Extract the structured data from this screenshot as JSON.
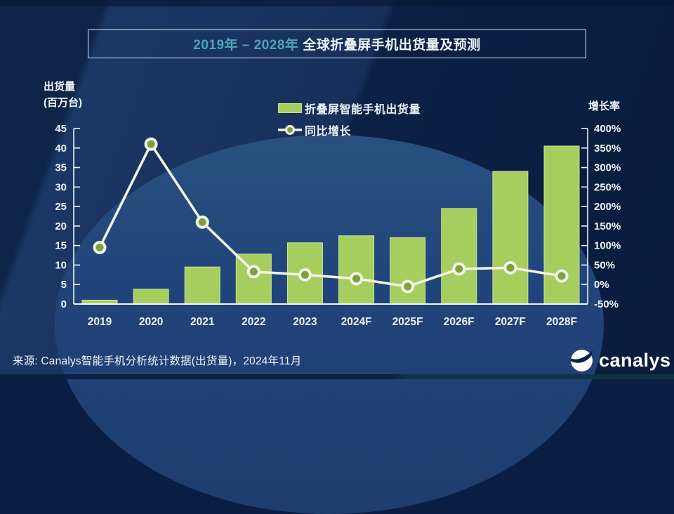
{
  "title": {
    "range": "2019年 – 2028年",
    "rest": " 全球折叠屏手机出货量及预测"
  },
  "left_axis_title": {
    "line1": "出货量",
    "line2": "(百万台)"
  },
  "right_axis_title": "增长率",
  "legend": {
    "bars_label": "折叠屏智能手机出货量",
    "line_label": "同比增长"
  },
  "source": "来源: Canalys智能手机分析统计数据(出货量)，2024年11月",
  "logo_text": "canalys",
  "colors": {
    "bar": "#a6ce5e",
    "line": "#f2f3e6",
    "marker_fill": "#7ba23b",
    "axis": "#f2f5f7",
    "tick_text": "#f2f6fa",
    "title_accent": "#4aa7b4",
    "background": "#0e2449"
  },
  "chart_data": {
    "type": "bar",
    "combo": "bar+line",
    "title": "2019年 – 2028年 全球折叠屏手机出货量及预测",
    "categories": [
      "2019",
      "2020",
      "2021",
      "2022",
      "2023",
      "2024F",
      "2025F",
      "2026F",
      "2027F",
      "2028F"
    ],
    "series": [
      {
        "name": "折叠屏智能手机出货量",
        "type": "bar",
        "axis": "left",
        "values": [
          1.0,
          3.8,
          9.5,
          12.8,
          15.7,
          17.5,
          17.0,
          24.5,
          34.0,
          40.5
        ]
      },
      {
        "name": "同比增长",
        "type": "line",
        "axis": "right",
        "values": [
          95,
          360,
          160,
          33,
          25,
          15,
          -5,
          40,
          43,
          22
        ]
      }
    ],
    "left_axis": {
      "title": "出货量(百万台)",
      "min": 0,
      "max": 45,
      "step": 5,
      "unit": "",
      "ticks": [
        45,
        40,
        35,
        30,
        25,
        20,
        15,
        10,
        5,
        0
      ]
    },
    "right_axis": {
      "title": "增长率",
      "min": -50,
      "max": 400,
      "step": 50,
      "unit": "%",
      "ticks": [
        400,
        350,
        300,
        250,
        200,
        150,
        100,
        50,
        0,
        -50
      ]
    },
    "grid": false,
    "legend_position": "top-center"
  }
}
